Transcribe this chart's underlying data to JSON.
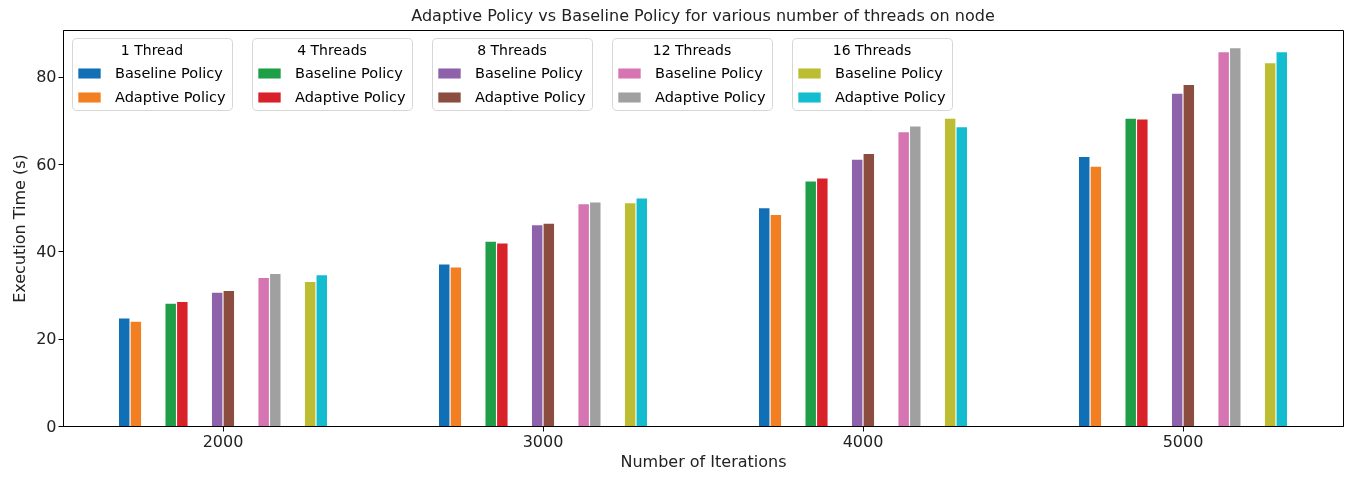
{
  "chart_data": {
    "type": "bar",
    "title": "Adaptive Policy vs Baseline Policy for various number of threads on node",
    "xlabel": "Number of Iterations",
    "ylabel": "Execution Time (s)",
    "categories": [
      "2000",
      "3000",
      "4000",
      "5000"
    ],
    "legend_title": [
      "1 Thread",
      "4 Threads",
      "8 Threads",
      "12 Threads",
      "16 Threads"
    ],
    "series": [
      {
        "name": "Baseline Policy",
        "color": "#1170b5",
        "values": [
          24.6,
          37.0,
          49.9,
          61.6
        ]
      },
      {
        "name": "Adaptive Policy",
        "color": "#f37f23",
        "values": [
          23.9,
          36.3,
          48.3,
          59.4
        ]
      },
      {
        "name": "Baseline Policy",
        "color": "#1f9e48",
        "values": [
          28.0,
          42.2,
          56.0,
          70.4
        ]
      },
      {
        "name": "Adaptive Policy",
        "color": "#d82128",
        "values": [
          28.4,
          41.8,
          56.7,
          70.2
        ]
      },
      {
        "name": "Baseline Policy",
        "color": "#8d62aa",
        "values": [
          30.5,
          46.0,
          61.0,
          76.1
        ]
      },
      {
        "name": "Adaptive Policy",
        "color": "#8b4d3f",
        "values": [
          30.9,
          46.3,
          62.3,
          78.1
        ]
      },
      {
        "name": "Baseline Policy",
        "color": "#d675b1",
        "values": [
          33.9,
          50.8,
          67.3,
          85.6
        ]
      },
      {
        "name": "Adaptive Policy",
        "color": "#a0a0a0",
        "values": [
          34.8,
          51.2,
          68.6,
          86.5
        ]
      },
      {
        "name": "Baseline Policy",
        "color": "#bcbd32",
        "values": [
          33.0,
          51.0,
          70.4,
          83.1
        ]
      },
      {
        "name": "Adaptive Policy",
        "color": "#14bccf",
        "values": [
          34.5,
          52.1,
          68.4,
          85.6
        ]
      }
    ],
    "ylim": [
      0,
      90.7
    ],
    "yticks": [
      0,
      20,
      40,
      60,
      80
    ],
    "grid": false,
    "legend": "top left"
  }
}
